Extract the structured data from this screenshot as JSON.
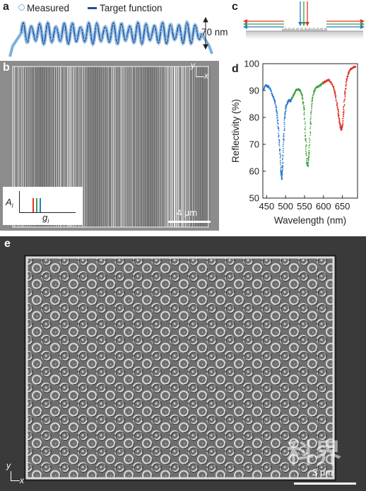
{
  "panels": {
    "a": {
      "label": "a",
      "legend_measured": "Measured",
      "legend_target": "Target function",
      "height_label": "70 nm",
      "colors": {
        "measured": "#7fb1dc",
        "target": "#1f4e9c"
      }
    },
    "b": {
      "label": "b",
      "scale_bar": "4 μm",
      "axis_x": "x",
      "axis_y": "y",
      "inset_ylabel": "A",
      "inset_ylabel_sub": "i",
      "inset_xlabel": "g",
      "inset_xlabel_sub": "i",
      "inset_colors": [
        "#e0332b",
        "#3aa23a",
        "#2a78c8"
      ]
    },
    "c": {
      "label": "c",
      "arrow_colors": [
        "#e0332b",
        "#3aa23a",
        "#2a78c8"
      ]
    },
    "d": {
      "label": "d"
    },
    "e": {
      "label": "e",
      "scale_bar": "3 μm",
      "axis_x": "x",
      "axis_y": "y",
      "watermark": "科界"
    }
  },
  "chart_data": {
    "type": "scatter",
    "title": "",
    "xlabel": "Wavelength (nm)",
    "ylabel": "Reflectivity (%)",
    "xlim": [
      440,
      690
    ],
    "ylim": [
      50,
      100
    ],
    "xticks": [
      450,
      500,
      550,
      600,
      650
    ],
    "yticks": [
      50,
      60,
      70,
      80,
      90,
      100
    ],
    "grid": false,
    "series": [
      {
        "color": "#2a78c8",
        "x": [
          440,
          447,
          454,
          460,
          466,
          472,
          477,
          481,
          485,
          488,
          490,
          492,
          495,
          498,
          501,
          505,
          509,
          513,
          516
        ],
        "y": [
          90,
          92,
          91.5,
          90.5,
          88,
          86,
          82,
          76,
          68,
          60,
          57,
          62,
          72,
          80,
          84,
          85.5,
          86.5,
          86,
          87
        ]
      },
      {
        "color": "#3aa23a",
        "x": [
          516,
          522,
          527,
          533,
          539,
          544,
          549,
          553,
          556,
          559,
          562,
          566,
          570,
          575,
          580,
          586,
          592,
          600
        ],
        "y": [
          87,
          88.5,
          90,
          90.5,
          90,
          88,
          83,
          72,
          63,
          62,
          67,
          78,
          86,
          89.5,
          91,
          91.5,
          92,
          93
        ]
      },
      {
        "color": "#e0332b",
        "x": [
          600,
          607,
          614,
          620,
          626,
          631,
          636,
          640,
          643,
          646,
          648,
          650,
          653,
          657,
          661,
          666,
          672,
          678,
          684
        ],
        "y": [
          93,
          93.5,
          94,
          93,
          91.5,
          89,
          85,
          81,
          78,
          76,
          75.5,
          77,
          82,
          89,
          94,
          96.5,
          98,
          98.5,
          99
        ]
      }
    ]
  }
}
